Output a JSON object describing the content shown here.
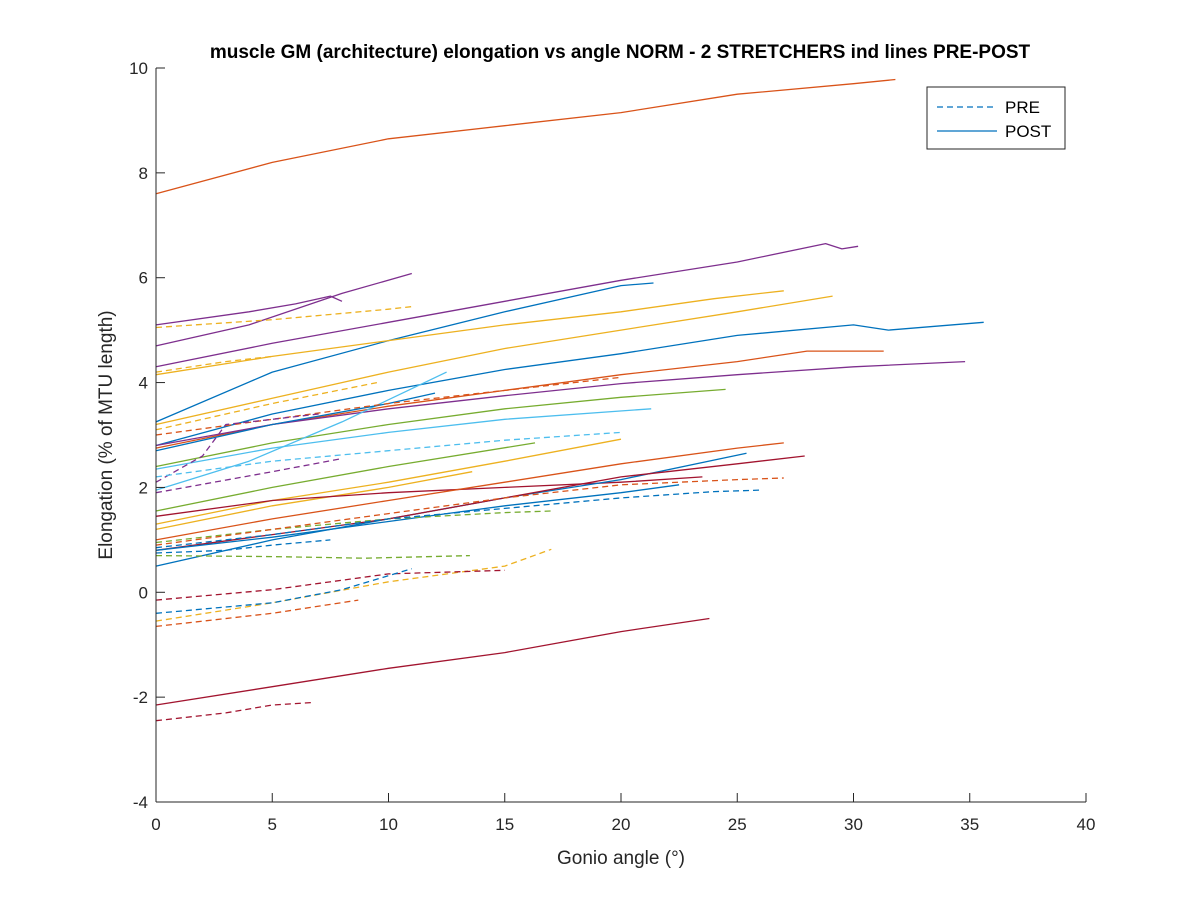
{
  "chart_data": {
    "type": "line",
    "title": "muscle GM (architecture) elongation vs angle NORM - 2 STRETCHERS ind lines PRE-POST",
    "xlabel": "Gonio angle (°)",
    "ylabel": "Elongation (% of MTU length)",
    "xlim": [
      0,
      40
    ],
    "ylim": [
      -4,
      10
    ],
    "xticks": [
      0,
      5,
      10,
      15,
      20,
      25,
      30,
      35,
      40
    ],
    "yticks": [
      -4,
      -2,
      0,
      2,
      4,
      6,
      8,
      10
    ],
    "grid": false,
    "legend": {
      "placement": "top-right",
      "entries": [
        {
          "label": "PRE",
          "style": "dashed",
          "color": "#0072BD"
        },
        {
          "label": "POST",
          "style": "solid",
          "color": "#0072BD"
        }
      ]
    },
    "series": [
      {
        "phase": "POST",
        "color": "#D95319",
        "points": [
          [
            0,
            7.6
          ],
          [
            5,
            8.2
          ],
          [
            10,
            8.65
          ],
          [
            15,
            8.9
          ],
          [
            20,
            9.15
          ],
          [
            25,
            9.5
          ],
          [
            30,
            9.7
          ],
          [
            31.8,
            9.78
          ]
        ]
      },
      {
        "phase": "POST",
        "color": "#7E2F8E",
        "points": [
          [
            0,
            4.3
          ],
          [
            5,
            4.75
          ],
          [
            10,
            5.15
          ],
          [
            15,
            5.55
          ],
          [
            20,
            5.95
          ],
          [
            25,
            6.3
          ],
          [
            28.8,
            6.65
          ],
          [
            29.5,
            6.55
          ],
          [
            30.2,
            6.6
          ]
        ]
      },
      {
        "phase": "POST",
        "color": "#7E2F8E",
        "points": [
          [
            0,
            4.7
          ],
          [
            4,
            5.1
          ],
          [
            8,
            5.7
          ],
          [
            11,
            6.08
          ]
        ]
      },
      {
        "phase": "POST",
        "color": "#7E2F8E",
        "points": [
          [
            0,
            5.1
          ],
          [
            4,
            5.35
          ],
          [
            6,
            5.5
          ],
          [
            7.5,
            5.65
          ],
          [
            8,
            5.55
          ]
        ]
      },
      {
        "phase": "POST",
        "color": "#0072BD",
        "points": [
          [
            0,
            3.25
          ],
          [
            5,
            4.2
          ],
          [
            10,
            4.8
          ],
          [
            15,
            5.35
          ],
          [
            20,
            5.85
          ],
          [
            21.4,
            5.9
          ]
        ]
      },
      {
        "phase": "POST",
        "color": "#EDB120",
        "points": [
          [
            0,
            4.15
          ],
          [
            5,
            4.5
          ],
          [
            10,
            4.8
          ],
          [
            15,
            5.1
          ],
          [
            20,
            5.35
          ],
          [
            24,
            5.6
          ],
          [
            27,
            5.75
          ]
        ]
      },
      {
        "phase": "POST",
        "color": "#EDB120",
        "points": [
          [
            0,
            3.2
          ],
          [
            5,
            3.7
          ],
          [
            10,
            4.2
          ],
          [
            15,
            4.65
          ],
          [
            20,
            5.0
          ],
          [
            25,
            5.35
          ],
          [
            29.1,
            5.65
          ]
        ]
      },
      {
        "phase": "POST",
        "color": "#0072BD",
        "points": [
          [
            0,
            2.8
          ],
          [
            5,
            3.4
          ],
          [
            10,
            3.85
          ],
          [
            15,
            4.25
          ],
          [
            20,
            4.55
          ],
          [
            25,
            4.9
          ],
          [
            30,
            5.1
          ],
          [
            31.5,
            5.0
          ],
          [
            35.6,
            5.15
          ]
        ]
      },
      {
        "phase": "POST",
        "color": "#D95319",
        "points": [
          [
            0,
            2.75
          ],
          [
            5,
            3.2
          ],
          [
            10,
            3.55
          ],
          [
            15,
            3.85
          ],
          [
            20,
            4.15
          ],
          [
            25,
            4.4
          ],
          [
            28,
            4.6
          ],
          [
            31.3,
            4.6
          ]
        ]
      },
      {
        "phase": "POST",
        "color": "#7E2F8E",
        "points": [
          [
            0,
            2.8
          ],
          [
            5,
            3.2
          ],
          [
            10,
            3.5
          ],
          [
            15,
            3.75
          ],
          [
            20,
            3.98
          ],
          [
            25,
            4.15
          ],
          [
            30,
            4.3
          ],
          [
            34.8,
            4.4
          ]
        ]
      },
      {
        "phase": "POST",
        "color": "#77AC30",
        "points": [
          [
            0,
            2.4
          ],
          [
            5,
            2.85
          ],
          [
            10,
            3.2
          ],
          [
            15,
            3.5
          ],
          [
            20,
            3.72
          ],
          [
            24.5,
            3.87
          ]
        ]
      },
      {
        "phase": "POST",
        "color": "#4DBEEE",
        "points": [
          [
            0,
            2.35
          ],
          [
            5,
            2.75
          ],
          [
            10,
            3.05
          ],
          [
            15,
            3.3
          ],
          [
            21.3,
            3.5
          ]
        ]
      },
      {
        "phase": "POST",
        "color": "#4DBEEE",
        "points": [
          [
            0,
            1.95
          ],
          [
            4,
            2.5
          ],
          [
            8,
            3.25
          ],
          [
            12.5,
            4.2
          ]
        ]
      },
      {
        "phase": "POST",
        "color": "#0072BD",
        "points": [
          [
            0,
            2.7
          ],
          [
            5,
            3.2
          ],
          [
            10,
            3.6
          ],
          [
            12,
            3.8
          ]
        ]
      },
      {
        "phase": "POST",
        "color": "#77AC30",
        "points": [
          [
            0,
            1.55
          ],
          [
            5,
            2.0
          ],
          [
            10,
            2.4
          ],
          [
            16.3,
            2.85
          ]
        ]
      },
      {
        "phase": "POST",
        "color": "#EDB120",
        "points": [
          [
            0,
            1.2
          ],
          [
            5,
            1.65
          ],
          [
            10,
            2.0
          ],
          [
            13.6,
            2.3
          ]
        ]
      },
      {
        "phase": "POST",
        "color": "#EDB120",
        "points": [
          [
            0,
            1.3
          ],
          [
            5,
            1.75
          ],
          [
            10,
            2.1
          ],
          [
            15,
            2.5
          ],
          [
            20,
            2.92
          ]
        ]
      },
      {
        "phase": "POST",
        "color": "#A2142F",
        "points": [
          [
            0,
            1.45
          ],
          [
            5,
            1.75
          ],
          [
            10,
            1.9
          ],
          [
            15,
            2.0
          ],
          [
            20,
            2.1
          ],
          [
            23.5,
            2.2
          ]
        ]
      },
      {
        "phase": "POST",
        "color": "#D95319",
        "points": [
          [
            0,
            1.0
          ],
          [
            5,
            1.4
          ],
          [
            10,
            1.75
          ],
          [
            15,
            2.1
          ],
          [
            20,
            2.45
          ],
          [
            25,
            2.75
          ],
          [
            27,
            2.85
          ]
        ]
      },
      {
        "phase": "POST",
        "color": "#0072BD",
        "points": [
          [
            0,
            0.5
          ],
          [
            5,
            1.0
          ],
          [
            10,
            1.4
          ],
          [
            15,
            1.8
          ],
          [
            20,
            2.15
          ],
          [
            25.4,
            2.65
          ]
        ]
      },
      {
        "phase": "POST",
        "color": "#A2142F",
        "points": [
          [
            0,
            0.8
          ],
          [
            5,
            1.1
          ],
          [
            10,
            1.4
          ],
          [
            15,
            1.8
          ],
          [
            20,
            2.2
          ],
          [
            25,
            2.45
          ],
          [
            27.9,
            2.6
          ]
        ]
      },
      {
        "phase": "POST",
        "color": "#0072BD",
        "points": [
          [
            0,
            0.8
          ],
          [
            5,
            1.05
          ],
          [
            10,
            1.35
          ],
          [
            15,
            1.65
          ],
          [
            20,
            1.9
          ],
          [
            22.5,
            2.05
          ]
        ]
      },
      {
        "phase": "POST",
        "color": "#A2142F",
        "points": [
          [
            0,
            -2.15
          ],
          [
            5,
            -1.8
          ],
          [
            10,
            -1.45
          ],
          [
            15,
            -1.15
          ],
          [
            20,
            -0.75
          ],
          [
            23.8,
            -0.5
          ]
        ]
      },
      {
        "phase": "PRE",
        "color": "#EDB120",
        "points": [
          [
            0,
            5.05
          ],
          [
            5,
            5.2
          ],
          [
            10,
            5.4
          ],
          [
            11,
            5.45
          ]
        ]
      },
      {
        "phase": "PRE",
        "color": "#EDB120",
        "points": [
          [
            0,
            4.2
          ],
          [
            3,
            4.4
          ],
          [
            5,
            4.5
          ]
        ]
      },
      {
        "phase": "PRE",
        "color": "#D95319",
        "points": [
          [
            0,
            3.0
          ],
          [
            5,
            3.3
          ],
          [
            10,
            3.6
          ],
          [
            15,
            3.85
          ],
          [
            20,
            4.1
          ]
        ]
      },
      {
        "phase": "PRE",
        "color": "#EDB120",
        "points": [
          [
            0,
            3.1
          ],
          [
            5,
            3.6
          ],
          [
            9.5,
            4.0
          ]
        ]
      },
      {
        "phase": "PRE",
        "color": "#7E2F8E",
        "points": [
          [
            0,
            2.1
          ],
          [
            2,
            2.6
          ],
          [
            3,
            3.2
          ],
          [
            5,
            3.3
          ],
          [
            7,
            3.4
          ]
        ]
      },
      {
        "phase": "PRE",
        "color": "#4DBEEE",
        "points": [
          [
            0,
            2.2
          ],
          [
            5,
            2.5
          ],
          [
            10,
            2.7
          ],
          [
            15,
            2.9
          ],
          [
            20,
            3.05
          ]
        ]
      },
      {
        "phase": "PRE",
        "color": "#7E2F8E",
        "points": [
          [
            0,
            1.9
          ],
          [
            5,
            2.3
          ],
          [
            8,
            2.55
          ]
        ]
      },
      {
        "phase": "PRE",
        "color": "#0072BD",
        "points": [
          [
            0,
            0.75
          ],
          [
            3,
            0.8
          ],
          [
            5,
            0.9
          ],
          [
            7.5,
            1.0
          ]
        ]
      },
      {
        "phase": "PRE",
        "color": "#77AC30",
        "points": [
          [
            0,
            0.7
          ],
          [
            5,
            0.68
          ],
          [
            9,
            0.65
          ],
          [
            13.5,
            0.7
          ]
        ]
      },
      {
        "phase": "PRE",
        "color": "#77AC30",
        "points": [
          [
            0,
            0.95
          ],
          [
            5,
            1.2
          ],
          [
            10,
            1.4
          ],
          [
            15,
            1.52
          ],
          [
            17,
            1.55
          ]
        ]
      },
      {
        "phase": "PRE",
        "color": "#D95319",
        "points": [
          [
            0,
            0.9
          ],
          [
            5,
            1.2
          ],
          [
            10,
            1.5
          ],
          [
            15,
            1.8
          ],
          [
            20,
            2.05
          ],
          [
            25,
            2.15
          ],
          [
            27,
            2.18
          ]
        ]
      },
      {
        "phase": "PRE",
        "color": "#0072BD",
        "points": [
          [
            0,
            0.85
          ],
          [
            5,
            1.1
          ],
          [
            10,
            1.4
          ],
          [
            15,
            1.6
          ],
          [
            20,
            1.8
          ],
          [
            24,
            1.92
          ],
          [
            26,
            1.95
          ]
        ]
      },
      {
        "phase": "PRE",
        "color": "#EDB120",
        "points": [
          [
            0,
            -0.55
          ],
          [
            5,
            -0.2
          ],
          [
            10,
            0.2
          ],
          [
            15,
            0.5
          ],
          [
            17,
            0.82
          ]
        ]
      },
      {
        "phase": "PRE",
        "color": "#A2142F",
        "points": [
          [
            0,
            -0.15
          ],
          [
            5,
            0.05
          ],
          [
            10,
            0.35
          ],
          [
            15,
            0.42
          ]
        ]
      },
      {
        "phase": "PRE",
        "color": "#0072BD",
        "points": [
          [
            0,
            -0.4
          ],
          [
            5,
            -0.2
          ],
          [
            8,
            0.05
          ],
          [
            11,
            0.45
          ]
        ]
      },
      {
        "phase": "PRE",
        "color": "#D95319",
        "points": [
          [
            0,
            -0.65
          ],
          [
            5,
            -0.4
          ],
          [
            8.7,
            -0.15
          ]
        ]
      },
      {
        "phase": "PRE",
        "color": "#A2142F",
        "points": [
          [
            0,
            -2.45
          ],
          [
            3,
            -2.3
          ],
          [
            5,
            -2.15
          ],
          [
            6.8,
            -2.1
          ]
        ]
      }
    ]
  }
}
